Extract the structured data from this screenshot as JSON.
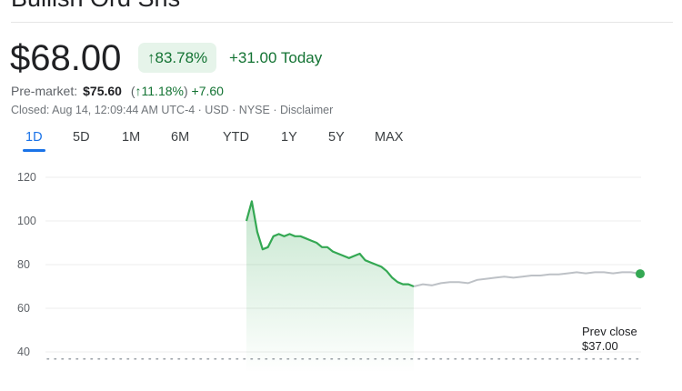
{
  "header": {
    "title": "Bullish Ord Shs"
  },
  "quote": {
    "price": "$68.00",
    "change_percent": "83.78%",
    "change_today": "+31.00 Today",
    "arrow_icon": "arrow-up-icon"
  },
  "premarket": {
    "label": "Pre-market:",
    "price": "$75.60",
    "change_percent": "11.18%",
    "change": "+7.60"
  },
  "status": "Closed: Aug 14, 12:09:44 AM UTC-4 · USD · NYSE · Disclaimer",
  "tabs": [
    {
      "label": "1D",
      "active": true
    },
    {
      "label": "5D"
    },
    {
      "label": "1M"
    },
    {
      "label": "6M"
    },
    {
      "label": "YTD"
    },
    {
      "label": "1Y"
    },
    {
      "label": "5Y"
    },
    {
      "label": "MAX"
    }
  ],
  "colors": {
    "up": "#137333",
    "line": "#34a853",
    "after_hours": "#bdc1c6",
    "accent": "#1a73e8"
  },
  "chart_data": {
    "type": "line",
    "y_ticks": [
      "120",
      "100",
      "80",
      "60",
      "40"
    ],
    "ylim": [
      40,
      120
    ],
    "grid": true,
    "prev_close": {
      "label": "Prev close",
      "value_label": "$37.00",
      "value": 37
    },
    "series": [
      {
        "values": [
          100,
          109,
          95,
          87,
          88,
          93,
          94,
          93,
          94,
          93,
          93,
          92,
          91,
          90,
          88,
          88,
          86,
          85,
          84,
          83,
          84,
          85,
          82,
          81,
          80,
          79,
          77,
          74,
          72,
          71,
          71,
          70
        ]
      },
      {
        "values": [
          70,
          71,
          70.5,
          71.5,
          72,
          72,
          71.5,
          73,
          73.5,
          74,
          74.5,
          74,
          74.5,
          75,
          75,
          75.5,
          75.5,
          76,
          76.5,
          76,
          76.5,
          76.5,
          76,
          76.5,
          76.5,
          75.8
        ]
      }
    ]
  }
}
